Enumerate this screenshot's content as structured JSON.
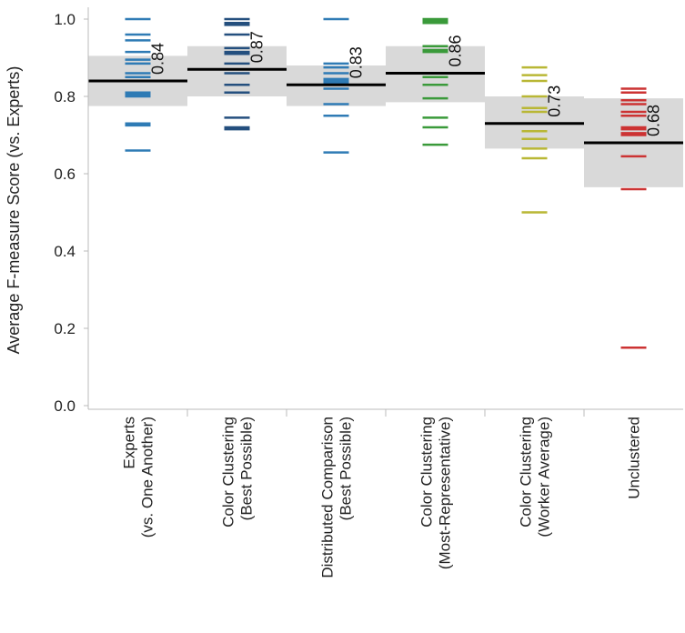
{
  "chart_data": {
    "type": "strip",
    "title": "",
    "ylabel": "Average F-measure Score (vs. Experts)",
    "ylim": [
      0.0,
      1.03
    ],
    "yticks": [
      "0.0",
      "0.2",
      "0.4",
      "0.6",
      "0.8",
      "1.0"
    ],
    "grid": false,
    "categories": [
      {
        "lines": [
          "Experts",
          "(vs. One Another)"
        ],
        "color": "#2f7bb5",
        "mean": 0.84,
        "mean_label": "0.84",
        "band": [
          0.775,
          0.905
        ],
        "values": [
          1.0,
          0.96,
          0.945,
          0.915,
          0.895,
          0.885,
          0.86,
          0.85,
          0.84,
          0.81,
          0.805,
          0.8,
          0.73,
          0.725,
          0.66
        ]
      },
      {
        "lines": [
          "Color Clustering",
          "(Best Possible)"
        ],
        "color": "#244f7e",
        "mean": 0.87,
        "mean_label": "0.87",
        "band": [
          0.8,
          0.93
        ],
        "values": [
          1.0,
          0.99,
          0.985,
          0.96,
          0.925,
          0.915,
          0.91,
          0.885,
          0.86,
          0.83,
          0.81,
          0.745,
          0.72,
          0.715
        ]
      },
      {
        "lines": [
          "Distributed Comparison",
          "(Best Possible)"
        ],
        "color": "#2f7bb5",
        "mean": 0.83,
        "mean_label": "0.83",
        "band": [
          0.775,
          0.88
        ],
        "values": [
          1.0,
          0.885,
          0.875,
          0.86,
          0.845,
          0.84,
          0.835,
          0.82,
          0.78,
          0.75,
          0.655
        ]
      },
      {
        "lines": [
          "Color Clustering",
          "(Most-Representative)"
        ],
        "color": "#3a9a3a",
        "mean": 0.86,
        "mean_label": "0.86",
        "band": [
          0.785,
          0.93
        ],
        "values": [
          1.0,
          0.995,
          0.99,
          0.93,
          0.92,
          0.915,
          0.86,
          0.85,
          0.83,
          0.795,
          0.745,
          0.72,
          0.675
        ]
      },
      {
        "lines": [
          "Color Clustering",
          "(Worker Average)"
        ],
        "color": "#b9b735",
        "mean": 0.73,
        "mean_label": "0.73",
        "band": [
          0.665,
          0.8
        ],
        "values": [
          0.875,
          0.855,
          0.84,
          0.8,
          0.77,
          0.76,
          0.73,
          0.71,
          0.69,
          0.665,
          0.64,
          0.5
        ]
      },
      {
        "lines": [
          "Unclustered"
        ],
        "color": "#cc3333",
        "mean": 0.68,
        "mean_label": "0.68",
        "band": [
          0.565,
          0.795
        ],
        "values": [
          0.82,
          0.81,
          0.79,
          0.78,
          0.76,
          0.75,
          0.72,
          0.715,
          0.705,
          0.7,
          0.645,
          0.56,
          0.15
        ]
      }
    ]
  }
}
